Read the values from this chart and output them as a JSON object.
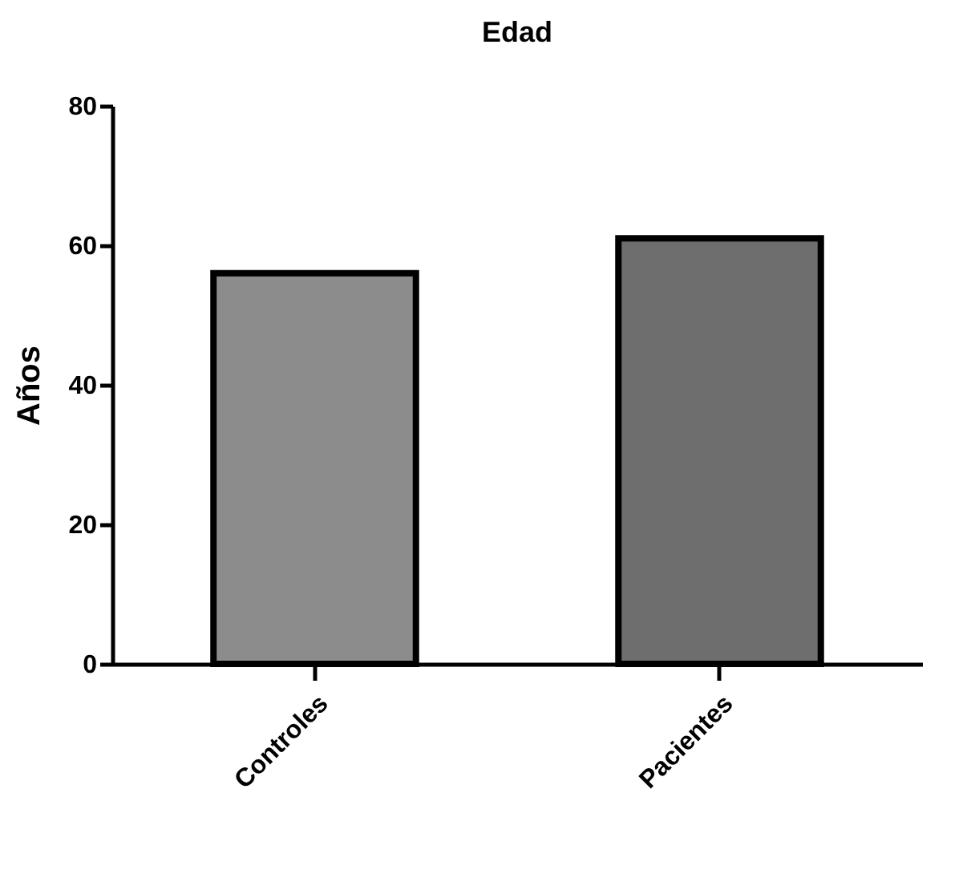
{
  "chart_data": {
    "type": "bar",
    "title": "Edad",
    "ylabel": "Años",
    "categories": [
      "Controles",
      "Pacientes"
    ],
    "values": [
      56,
      61
    ],
    "colors": [
      "#8c8c8c",
      "#6e6e6e"
    ],
    "ylim": [
      0,
      80
    ],
    "yticks": [
      0,
      20,
      40,
      60,
      80
    ],
    "grid": false
  }
}
